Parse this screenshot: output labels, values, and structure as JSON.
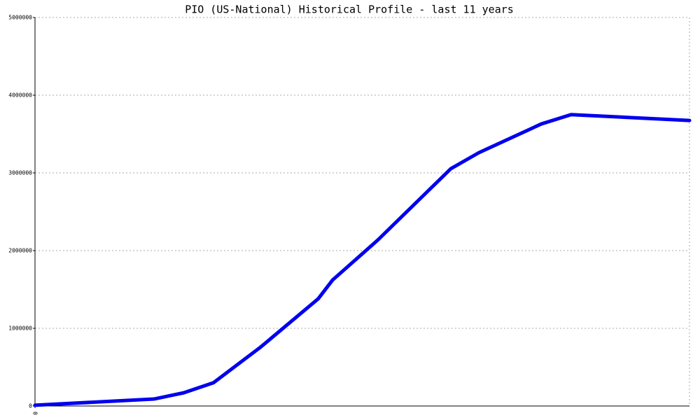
{
  "chart_data": {
    "type": "line",
    "title": "PIO (US-National) Historical Profile - last 11 years",
    "x": [
      0,
      20,
      25,
      30,
      37.9,
      47.6,
      50,
      57.6,
      69.9,
      74.6,
      85.1,
      90.1,
      110
    ],
    "series": [
      {
        "name": "PIO",
        "color": "#0000ee",
        "values": [
          10000,
          90000,
          170000,
          300000,
          757000,
          1380000,
          1620000,
          2135000,
          3055000,
          3260000,
          3630000,
          3750000,
          3675000
        ]
      }
    ],
    "xlim": [
      0,
      110
    ],
    "xticks": [
      0
    ],
    "ylim": [
      0,
      5000000
    ],
    "yticks": [
      0,
      1000000,
      2000000,
      3000000,
      4000000,
      5000000
    ],
    "grid": true
  }
}
